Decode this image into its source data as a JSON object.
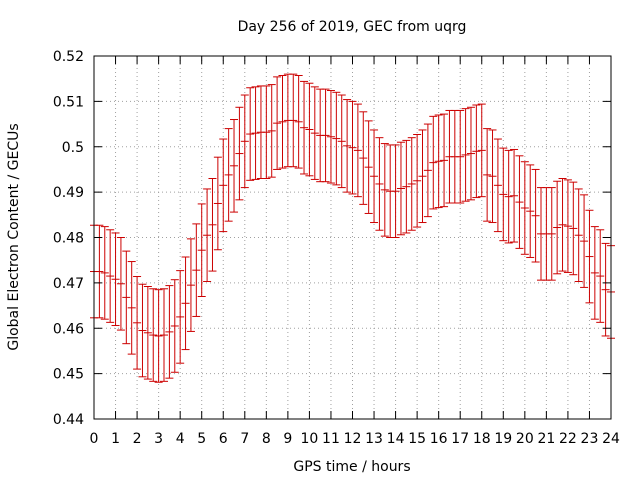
{
  "chart_data": {
    "type": "errorbar",
    "title": "Day 256 of 2019, GEC from uqrg",
    "xlabel": "GPS time / hours",
    "ylabel": "Global Electron Content / GECUs",
    "xlim": [
      0,
      24
    ],
    "ylim": [
      0.44,
      0.52
    ],
    "xticks": [
      "0",
      "1",
      "2",
      "3",
      "4",
      "5",
      "6",
      "7",
      "8",
      "9",
      "10",
      "11",
      "12",
      "13",
      "14",
      "15",
      "16",
      "17",
      "18",
      "19",
      "20",
      "21",
      "22",
      "23",
      "24"
    ],
    "yticks": [
      "0.44",
      "0.45",
      "0.46",
      "0.47",
      "0.48",
      "0.49",
      "0.5",
      "0.51",
      "0.52"
    ],
    "grid": true,
    "series_color": "#cc0000",
    "series": [
      {
        "name": "GEC",
        "x": [
          0.0,
          0.25,
          0.5,
          0.75,
          1.0,
          1.25,
          1.5,
          1.75,
          2.0,
          2.25,
          2.5,
          2.75,
          3.0,
          3.25,
          3.5,
          3.75,
          4.0,
          4.25,
          4.5,
          4.75,
          5.0,
          5.25,
          5.5,
          5.75,
          6.0,
          6.25,
          6.5,
          6.75,
          7.0,
          7.25,
          7.5,
          7.75,
          8.0,
          8.25,
          8.5,
          8.75,
          9.0,
          9.25,
          9.5,
          9.75,
          10.0,
          10.25,
          10.5,
          10.75,
          11.0,
          11.25,
          11.5,
          11.75,
          12.0,
          12.25,
          12.5,
          12.75,
          13.0,
          13.25,
          13.5,
          13.75,
          14.0,
          14.25,
          14.5,
          14.75,
          15.0,
          15.25,
          15.5,
          15.75,
          16.0,
          16.25,
          16.5,
          16.75,
          17.0,
          17.25,
          17.5,
          17.75,
          18.0,
          18.25,
          18.5,
          18.75,
          19.0,
          19.25,
          19.5,
          19.75,
          20.0,
          20.25,
          20.5,
          20.75,
          21.0,
          21.25,
          21.5,
          21.75,
          22.0,
          22.25,
          22.5,
          22.75,
          23.0,
          23.25,
          23.5,
          23.75,
          24.0
        ],
        "values": [
          0.4725,
          0.4725,
          0.4722,
          0.4715,
          0.4708,
          0.4698,
          0.4668,
          0.4645,
          0.4612,
          0.4595,
          0.459,
          0.4585,
          0.4583,
          0.4585,
          0.4592,
          0.4605,
          0.4625,
          0.4655,
          0.4695,
          0.4728,
          0.4772,
          0.4805,
          0.4828,
          0.4875,
          0.4915,
          0.4938,
          0.4958,
          0.4985,
          0.5012,
          0.5028,
          0.503,
          0.5032,
          0.5032,
          0.5035,
          0.5052,
          0.5055,
          0.5058,
          0.5058,
          0.5055,
          0.5042,
          0.5038,
          0.503,
          0.5025,
          0.5025,
          0.5022,
          0.5018,
          0.5012,
          0.5002,
          0.4998,
          0.4992,
          0.4975,
          0.4955,
          0.4935,
          0.4918,
          0.4905,
          0.4902,
          0.4902,
          0.4908,
          0.4912,
          0.4918,
          0.4925,
          0.4935,
          0.4948,
          0.4965,
          0.4968,
          0.497,
          0.4978,
          0.4978,
          0.4978,
          0.4982,
          0.4985,
          0.499,
          0.4992,
          0.4938,
          0.4935,
          0.4915,
          0.4895,
          0.489,
          0.4892,
          0.4878,
          0.4865,
          0.4858,
          0.4848,
          0.4808,
          0.4808,
          0.4808,
          0.4822,
          0.4828,
          0.4825,
          0.482,
          0.4805,
          0.4792,
          0.4758,
          0.4722,
          0.4715,
          0.4685,
          0.468
        ],
        "error": [
          0.0102,
          0.0102,
          0.0102,
          0.0102,
          0.0102,
          0.0102,
          0.0102,
          0.0102,
          0.0102,
          0.0102,
          0.0102,
          0.0102,
          0.0102,
          0.0102,
          0.0102,
          0.0102,
          0.0102,
          0.0102,
          0.0102,
          0.0102,
          0.0102,
          0.0102,
          0.0102,
          0.0102,
          0.0102,
          0.0102,
          0.0102,
          0.0102,
          0.0102,
          0.0102,
          0.0102,
          0.0102,
          0.0102,
          0.0102,
          0.0102,
          0.0102,
          0.0102,
          0.0102,
          0.0102,
          0.0102,
          0.0102,
          0.0102,
          0.0102,
          0.0102,
          0.0102,
          0.0102,
          0.0102,
          0.0102,
          0.0102,
          0.0102,
          0.0102,
          0.0102,
          0.0102,
          0.0102,
          0.0102,
          0.0102,
          0.0102,
          0.0102,
          0.0102,
          0.0102,
          0.0102,
          0.0102,
          0.0102,
          0.0102,
          0.0102,
          0.0102,
          0.0102,
          0.0102,
          0.0102,
          0.0102,
          0.0102,
          0.0102,
          0.0102,
          0.0102,
          0.0102,
          0.0102,
          0.0102,
          0.0102,
          0.0102,
          0.0102,
          0.0102,
          0.0102,
          0.0102,
          0.0102,
          0.0102,
          0.0102,
          0.0102,
          0.0102,
          0.0102,
          0.0102,
          0.0102,
          0.0102,
          0.0102,
          0.0102,
          0.0102,
          0.0102,
          0.0102
        ]
      }
    ]
  }
}
